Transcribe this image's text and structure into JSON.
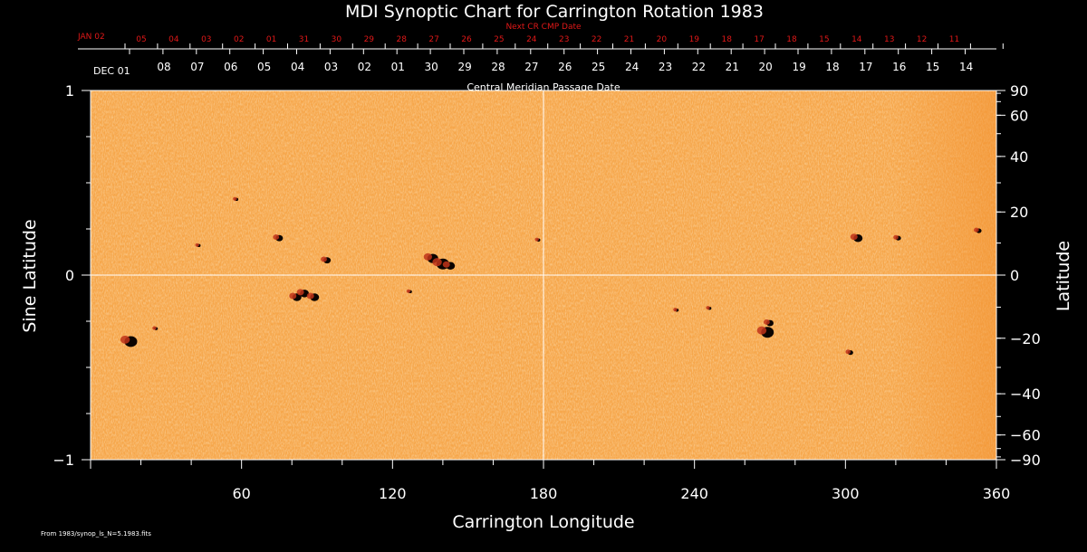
{
  "chart_data": {
    "type": "heatmap",
    "title": "MDI Synoptic Chart for Carrington Rotation 1983",
    "xlabel": "Carrington Longitude",
    "ylabel_left": "Sine Latitude",
    "ylabel_right": "Latitude",
    "xlim": [
      0,
      360
    ],
    "ylim": [
      -1,
      1
    ],
    "x_ticks": [
      60,
      120,
      180,
      240,
      300,
      360
    ],
    "y_left_ticks": [
      {
        "v": 1,
        "label": "1"
      },
      {
        "v": 0,
        "label": "0"
      },
      {
        "v": -1,
        "label": "−1"
      }
    ],
    "y_right_ticks": [
      {
        "deg": 90,
        "label": "90"
      },
      {
        "deg": 60,
        "label": "60"
      },
      {
        "deg": 40,
        "label": "40"
      },
      {
        "deg": 20,
        "label": "20"
      },
      {
        "deg": 0,
        "label": "0"
      },
      {
        "deg": -20,
        "label": "−20"
      },
      {
        "deg": -40,
        "label": "−40"
      },
      {
        "deg": -60,
        "label": "−60"
      },
      {
        "deg": -90,
        "label": "−90"
      }
    ],
    "top_axis_caption": "Central Meridian Passage Date",
    "top_axis_first_label": "DEC 01",
    "top_axis_dates": [
      "08",
      "07",
      "06",
      "05",
      "04",
      "03",
      "02",
      "01",
      "30",
      "29",
      "28",
      "27",
      "26",
      "25",
      "24",
      "23",
      "22",
      "21",
      "20",
      "19",
      "18",
      "17",
      "16",
      "15",
      "14"
    ],
    "next_cr_caption": "Next CR CMP Date",
    "next_cr_first_label": "JAN 02",
    "next_cr_dates": [
      "05",
      "04",
      "03",
      "02",
      "01",
      "31",
      "30",
      "29",
      "28",
      "27",
      "26",
      "25",
      "24",
      "23",
      "22",
      "21",
      "20",
      "19",
      "18",
      "17",
      "18",
      "15",
      "14",
      "13",
      "12",
      "11"
    ],
    "footer": "From 1983/synop_ls_N=5.1983.fits",
    "features": [
      {
        "lon": 16,
        "sinlat": -0.36,
        "r": 7
      },
      {
        "lon": 26,
        "sinlat": -0.29,
        "r": 2
      },
      {
        "lon": 43,
        "sinlat": 0.16,
        "r": 2
      },
      {
        "lon": 58,
        "sinlat": 0.41,
        "r": 2
      },
      {
        "lon": 75,
        "sinlat": 0.2,
        "r": 4
      },
      {
        "lon": 82,
        "sinlat": -0.12,
        "r": 5
      },
      {
        "lon": 85,
        "sinlat": -0.1,
        "r": 5
      },
      {
        "lon": 89,
        "sinlat": -0.12,
        "r": 5
      },
      {
        "lon": 94,
        "sinlat": 0.08,
        "r": 4
      },
      {
        "lon": 127,
        "sinlat": -0.09,
        "r": 2
      },
      {
        "lon": 136,
        "sinlat": 0.09,
        "r": 6
      },
      {
        "lon": 140,
        "sinlat": 0.06,
        "r": 7
      },
      {
        "lon": 143,
        "sinlat": 0.05,
        "r": 5
      },
      {
        "lon": 178,
        "sinlat": 0.19,
        "r": 2
      },
      {
        "lon": 233,
        "sinlat": -0.19,
        "r": 2
      },
      {
        "lon": 246,
        "sinlat": -0.18,
        "r": 2
      },
      {
        "lon": 269,
        "sinlat": -0.31,
        "r": 7
      },
      {
        "lon": 270,
        "sinlat": -0.26,
        "r": 4
      },
      {
        "lon": 302,
        "sinlat": -0.42,
        "r": 3
      },
      {
        "lon": 305,
        "sinlat": 0.2,
        "r": 5
      },
      {
        "lon": 321,
        "sinlat": 0.2,
        "r": 3
      },
      {
        "lon": 353,
        "sinlat": 0.24,
        "r": 3
      }
    ]
  }
}
